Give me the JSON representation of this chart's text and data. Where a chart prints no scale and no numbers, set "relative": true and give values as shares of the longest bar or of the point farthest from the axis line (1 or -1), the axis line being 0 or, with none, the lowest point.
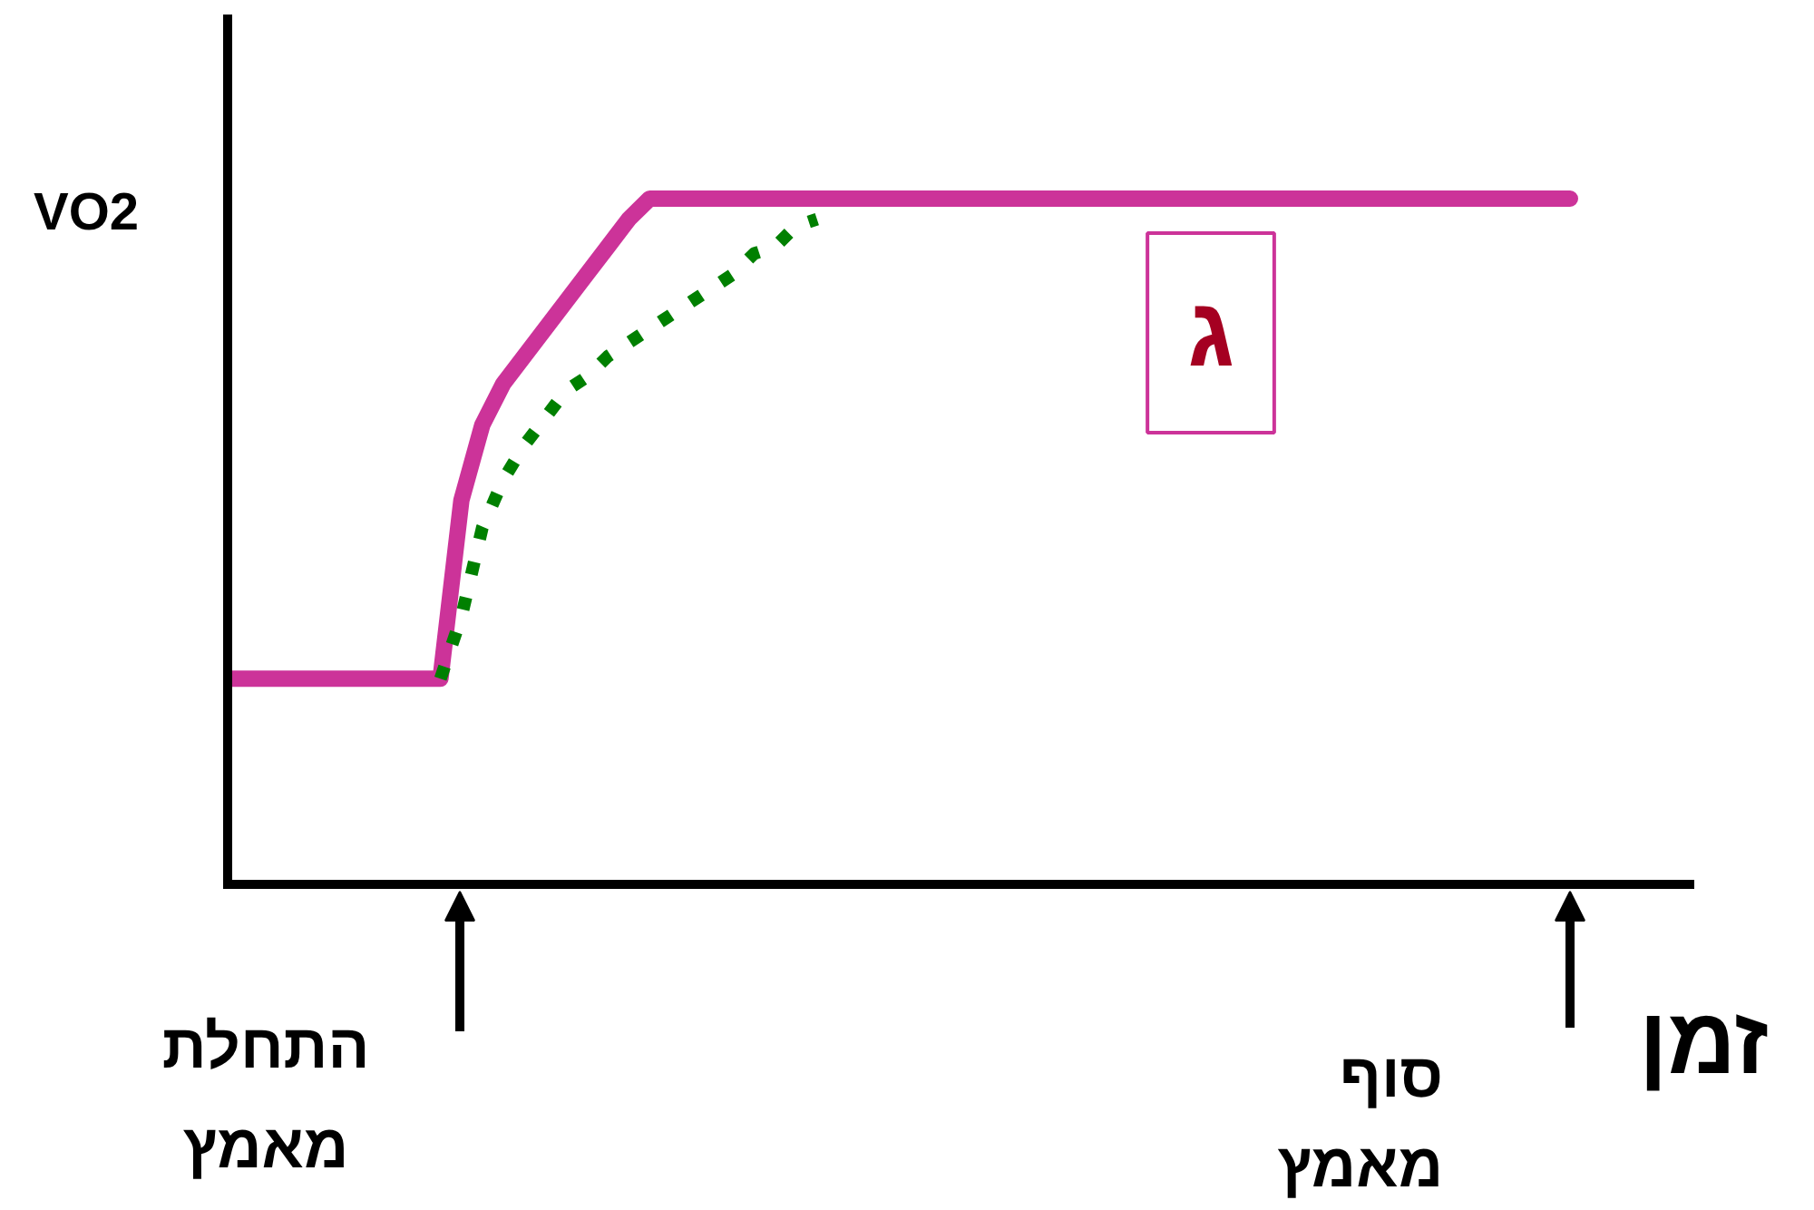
{
  "chart_data": {
    "type": "line",
    "relative": true,
    "xlabel": "זמן",
    "ylabel": "VO2",
    "line_style": "solid",
    "categories": [
      null,
      null,
      null,
      null,
      null,
      null,
      null,
      null,
      null,
      null,
      null,
      null,
      null,
      null,
      null,
      null,
      null,
      null,
      null,
      null,
      null,
      null,
      null,
      null,
      null,
      null,
      null,
      null,
      null,
      null,
      null,
      null,
      null,
      null,
      null,
      null,
      null,
      null,
      null,
      null,
      null,
      null,
      null,
      null,
      null,
      null,
      null,
      null,
      null,
      null,
      null,
      null,
      null,
      null,
      null,
      null,
      null,
      null,
      null,
      null,
      null,
      null,
      null,
      null,
      null
    ],
    "series": [
      {
        "color": "#cc3399",
        "values": [
          0.3,
          0.3,
          0.3,
          0.3,
          0.3,
          0.3,
          0.3,
          0.3,
          0.3,
          0.3,
          0.3,
          0.56,
          0.67,
          0.73,
          0.77,
          0.81,
          0.85,
          0.89,
          0.93,
          0.97,
          1.0,
          1.0,
          1.0,
          1.0,
          1.0,
          1.0,
          1.0,
          1.0,
          1.0,
          1.0,
          1.0,
          1.0,
          1.0,
          1.0,
          1.0,
          1.0,
          1.0,
          1.0,
          1.0,
          1.0,
          1.0,
          1.0,
          1.0,
          1.0,
          1.0,
          1.0,
          1.0,
          1.0,
          1.0,
          1.0,
          1.0,
          1.0,
          1.0,
          1.0,
          1.0,
          1.0,
          1.0,
          1.0,
          1.0,
          1.0,
          1.0,
          1.0,
          1.0,
          1.0,
          1.0
        ]
      },
      {
        "color": "#008000",
        "line_style": "dotted",
        "values": [
          null,
          null,
          null,
          null,
          null,
          null,
          null,
          null,
          null,
          null,
          0.3,
          0.39,
          0.52,
          0.59,
          0.64,
          0.68,
          0.72,
          0.74,
          0.77,
          0.79,
          0.81,
          0.83,
          0.85,
          0.87,
          0.89,
          0.92,
          0.93,
          0.96,
          0.97,
          null,
          null,
          null,
          null,
          null,
          null,
          null,
          null,
          null,
          null,
          null,
          null,
          null,
          null,
          null,
          null,
          null,
          null,
          null,
          null,
          null,
          null,
          null,
          null,
          null,
          null,
          null,
          null,
          null,
          null,
          null,
          null,
          null,
          null,
          null,
          null
        ]
      }
    ],
    "annotations": [
      "ג",
      "התחלת מאמץ",
      "סוף מאמץ"
    ]
  }
}
